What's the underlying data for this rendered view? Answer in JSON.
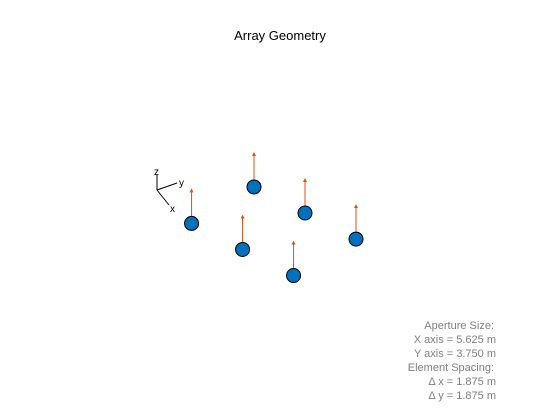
{
  "title": "Array Geometry",
  "triad": {
    "z_label": "z",
    "y_label": "y",
    "x_label": "x"
  },
  "info": {
    "lines": [
      "Aperture Size:",
      "X axis = 5.625 m",
      "Y axis = 3.750 m",
      "Element Spacing:",
      "Δ x = 1.875 m",
      "Δ y = 1.875 m"
    ]
  },
  "colors": {
    "element_fill": "#0072bd",
    "element_stroke": "#000000",
    "normal_arrow": "#d95319",
    "info_text": "#7f7f7f"
  },
  "array": {
    "aperture_x_m": 5.625,
    "aperture_y_m": 3.75,
    "spacing_x_m": 1.875,
    "spacing_y_m": 1.875,
    "elements": [
      {
        "x_m": -2.8125,
        "y_m": -1.875
      },
      {
        "x_m": -0.9375,
        "y_m": -1.875
      },
      {
        "x_m": 0.9375,
        "y_m": -1.875
      },
      {
        "x_m": -1.875,
        "y_m": 0
      },
      {
        "x_m": 0,
        "y_m": 0
      },
      {
        "x_m": 1.875,
        "y_m": 0
      }
    ]
  }
}
